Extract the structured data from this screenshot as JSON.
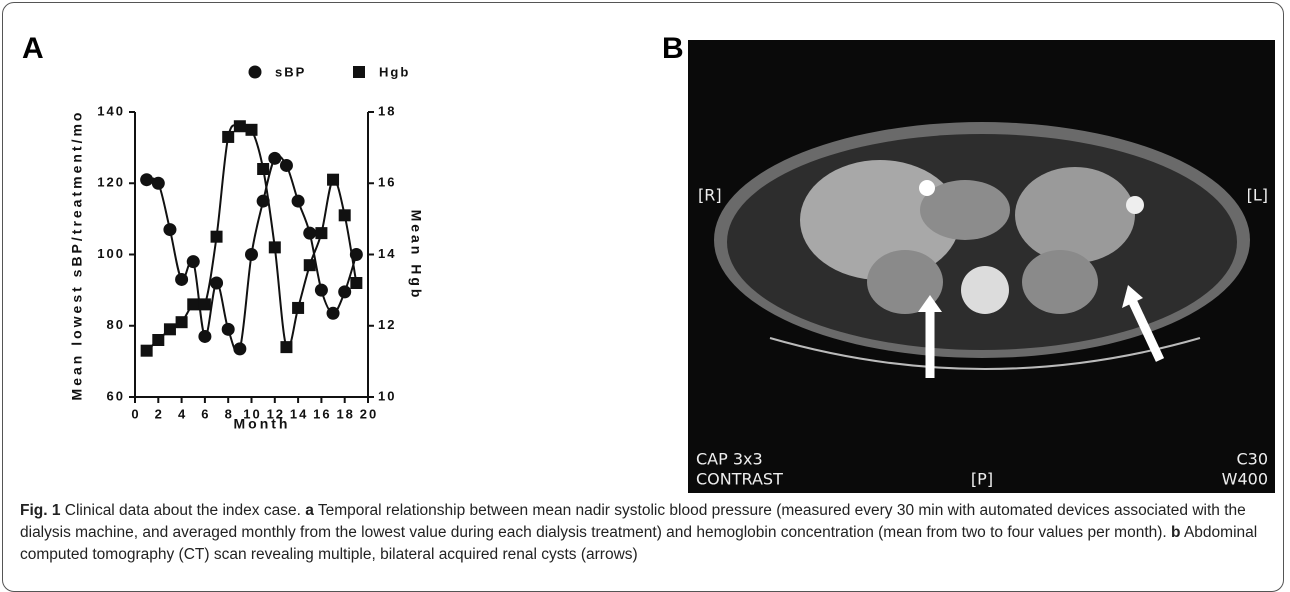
{
  "panel_labels": [
    "A",
    "B"
  ],
  "chart_data": {
    "type": "line",
    "x_label": "Month",
    "y_label": "Mean lowest sBP/treatment/mo",
    "y2_label": "Mean Hgb",
    "x": [
      1,
      2,
      3,
      4,
      5,
      6,
      7,
      8,
      9,
      10,
      11,
      12,
      13,
      14,
      15,
      16,
      17,
      18,
      19
    ],
    "series": [
      {
        "name": "sBP",
        "marker": "circle",
        "color": "#111",
        "values": [
          121,
          120,
          107,
          93,
          98,
          77,
          92,
          79,
          73.5,
          100,
          115,
          127,
          125,
          115,
          106,
          90,
          83.5,
          89.5,
          100
        ]
      },
      {
        "name": "Hgb",
        "marker": "square",
        "color": "#111",
        "axis": "y2",
        "values": [
          11.3,
          11.6,
          11.9,
          12.1,
          12.6,
          12.6,
          14.5,
          17.3,
          17.6,
          17.5,
          16.4,
          14.2,
          11.4,
          12.5,
          13.7,
          14.6,
          16.1,
          15.1,
          13.2
        ]
      }
    ],
    "xlim": [
      0,
      20
    ],
    "xticks": [
      0,
      2,
      4,
      6,
      8,
      10,
      12,
      14,
      16,
      18,
      20
    ],
    "ylim": [
      60,
      140
    ],
    "yticks": [
      60,
      80,
      100,
      120,
      140
    ],
    "y2lim": [
      10,
      18
    ],
    "y2ticks": [
      10,
      12,
      14,
      16,
      18
    ],
    "smooth": true
  },
  "image_labels": {
    "right": "[R]",
    "left": "[L]",
    "posterior": "[P]",
    "series": "CAP 3x3",
    "contrast": "CONTRAST",
    "center": "C30",
    "width": "W400"
  },
  "caption": {
    "label": "Fig. 1",
    "title": "Clinical data about the index case.",
    "parts": [
      {
        "label": "a",
        "text": "Temporal relationship between mean nadir systolic blood pressure (measured every 30 min with automated devices associated with the dialysis machine, and averaged monthly from the lowest value during each dialysis treatment) and hemoglobin concentration (mean from two to four values per month)."
      },
      {
        "label": "b",
        "text": "Abdominal computed tomography (CT) scan revealing multiple, bilateral acquired renal cysts (arrows)"
      }
    ]
  }
}
